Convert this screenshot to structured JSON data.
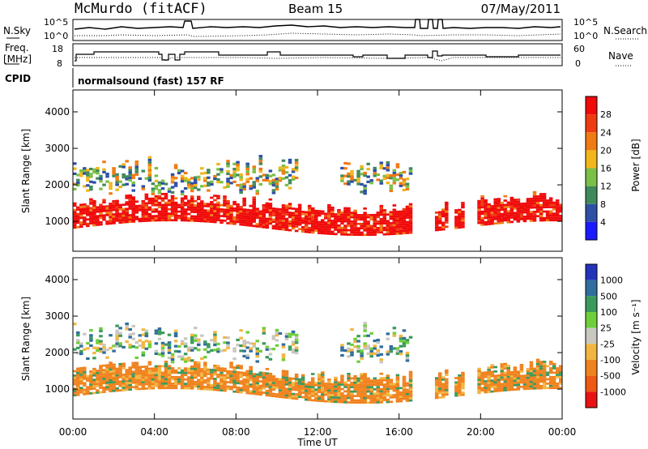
{
  "header": {
    "station": "McMurdo (fitACF)",
    "beam": "Beam 15",
    "date": "07/May/2011"
  },
  "noise_panel": {
    "left_label": "N.Sky",
    "right_label": "N.Search",
    "left_ticks": [
      "10^5",
      "10^0"
    ],
    "right_ticks": [
      "10^5",
      "10^0"
    ]
  },
  "freq_panel": {
    "left_label_1": "Freq.",
    "left_label_2": "[MHz]",
    "right_label": "Nave",
    "left_ticks": [
      "18",
      "8"
    ],
    "right_ticks": [
      "60",
      "0"
    ]
  },
  "cpid": {
    "label": "CPID",
    "text": "normalsound (fast) 157 RF"
  },
  "chart_data": [
    {
      "type": "heatmap",
      "name_key": "power",
      "ylabel": "Slant Range [km]",
      "ylim": [
        180,
        4600
      ],
      "yticks": [
        "1000",
        "2000",
        "3000",
        "4000"
      ],
      "colorbar_label": "Power [dB]",
      "colorbar_ticks": [
        "4",
        "8",
        "12",
        "16",
        "20",
        "24",
        "28"
      ],
      "colorbar_colors": [
        "#1a1aff",
        "#2e4fa6",
        "#3f8a5a",
        "#7bbf47",
        "#f2b61a",
        "#f07a14",
        "#ef3b12",
        "#f00a0a"
      ]
    },
    {
      "type": "heatmap",
      "name_key": "velocity",
      "ylabel": "Slant Range [km]",
      "ylim": [
        180,
        4600
      ],
      "yticks": [
        "1000",
        "2000",
        "3000",
        "4000"
      ],
      "colorbar_label": "Velocity [m s⁻¹]",
      "colorbar_ticks": [
        "1000",
        "500",
        "100",
        "25",
        "-25",
        "-100",
        "-500",
        "-1000"
      ],
      "colorbar_colors": [
        "#2233bb",
        "#2f6e9e",
        "#3a9a5c",
        "#6ecf3a",
        "#c9c7c0",
        "#f2b640",
        "#f0821e",
        "#ee5a14",
        "#e81212"
      ]
    }
  ],
  "time_axis": {
    "label": "Time UT",
    "ticks": [
      "00:00",
      "04:00",
      "08:00",
      "12:00",
      "16:00",
      "20:00",
      "00:00"
    ]
  }
}
